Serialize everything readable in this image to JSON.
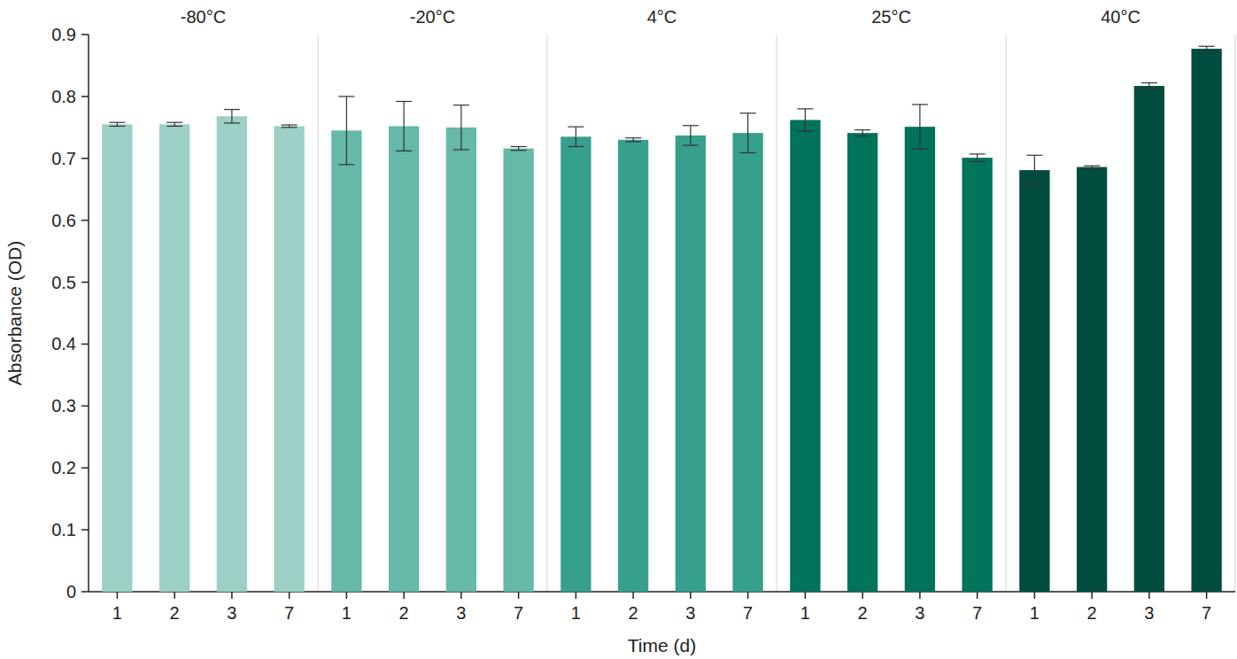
{
  "chart_data": {
    "type": "bar",
    "x_label": "Time (d)",
    "y_label": "Absorbance (OD)",
    "categories": [
      "1",
      "2",
      "3",
      "7"
    ],
    "series": [
      {
        "name": "-80°C",
        "color": "#9ccfc5",
        "values": [
          0.755,
          0.755,
          0.768,
          0.752
        ],
        "errors": [
          0.003,
          0.003,
          0.011,
          0.002
        ]
      },
      {
        "name": "-20°C",
        "color": "#66b8a8",
        "values": [
          0.745,
          0.752,
          0.75,
          0.716
        ],
        "errors": [
          0.055,
          0.04,
          0.036,
          0.003
        ]
      },
      {
        "name": "4°C",
        "color": "#36a08c",
        "values": [
          0.735,
          0.73,
          0.737,
          0.741
        ],
        "errors": [
          0.016,
          0.003,
          0.016,
          0.032
        ]
      },
      {
        "name": "25°C",
        "color": "#00735a",
        "values": [
          0.762,
          0.741,
          0.751,
          0.701
        ],
        "errors": [
          0.018,
          0.005,
          0.036,
          0.006
        ]
      },
      {
        "name": "40°C",
        "color": "#004d40",
        "values": [
          0.681,
          0.686,
          0.817,
          0.877
        ],
        "errors": [
          0.024,
          0.002,
          0.005,
          0.004
        ]
      }
    ],
    "ylim": [
      0,
      0.9
    ],
    "yticks": [
      0,
      0.1,
      0.2,
      0.3,
      0.4,
      0.5,
      0.6,
      0.7,
      0.8,
      0.9
    ],
    "grid": false
  }
}
